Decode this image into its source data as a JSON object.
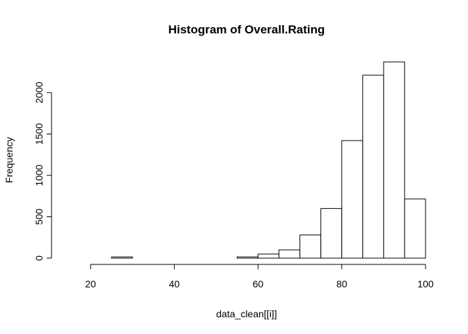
{
  "chart_data": {
    "type": "bar",
    "title": "Histogram of Overall.Rating",
    "xlabel": "data_clean[[i]]",
    "ylabel": "Frequency",
    "bin_width": 5,
    "bins": [
      {
        "x0": 15,
        "x1": 20,
        "count": 0
      },
      {
        "x0": 20,
        "x1": 25,
        "count": 0
      },
      {
        "x0": 25,
        "x1": 30,
        "count": 15
      },
      {
        "x0": 30,
        "x1": 35,
        "count": 0
      },
      {
        "x0": 35,
        "x1": 40,
        "count": 0
      },
      {
        "x0": 40,
        "x1": 45,
        "count": 0
      },
      {
        "x0": 45,
        "x1": 50,
        "count": 0
      },
      {
        "x0": 50,
        "x1": 55,
        "count": 0
      },
      {
        "x0": 55,
        "x1": 60,
        "count": 15
      },
      {
        "x0": 60,
        "x1": 65,
        "count": 50
      },
      {
        "x0": 65,
        "x1": 70,
        "count": 100
      },
      {
        "x0": 70,
        "x1": 75,
        "count": 280
      },
      {
        "x0": 75,
        "x1": 80,
        "count": 600
      },
      {
        "x0": 80,
        "x1": 85,
        "count": 1420
      },
      {
        "x0": 85,
        "x1": 90,
        "count": 2210
      },
      {
        "x0": 90,
        "x1": 95,
        "count": 2370
      },
      {
        "x0": 95,
        "x1": 100,
        "count": 715
      }
    ],
    "xlim": [
      15,
      100
    ],
    "ylim": [
      0,
      2370
    ],
    "x_ticks": [
      20,
      40,
      60,
      80,
      100
    ],
    "y_ticks": [
      0,
      500,
      1000,
      1500,
      2000
    ],
    "grid": false,
    "colors": {
      "bar_fill": "#ffffff",
      "bar_stroke": "#000000"
    }
  }
}
